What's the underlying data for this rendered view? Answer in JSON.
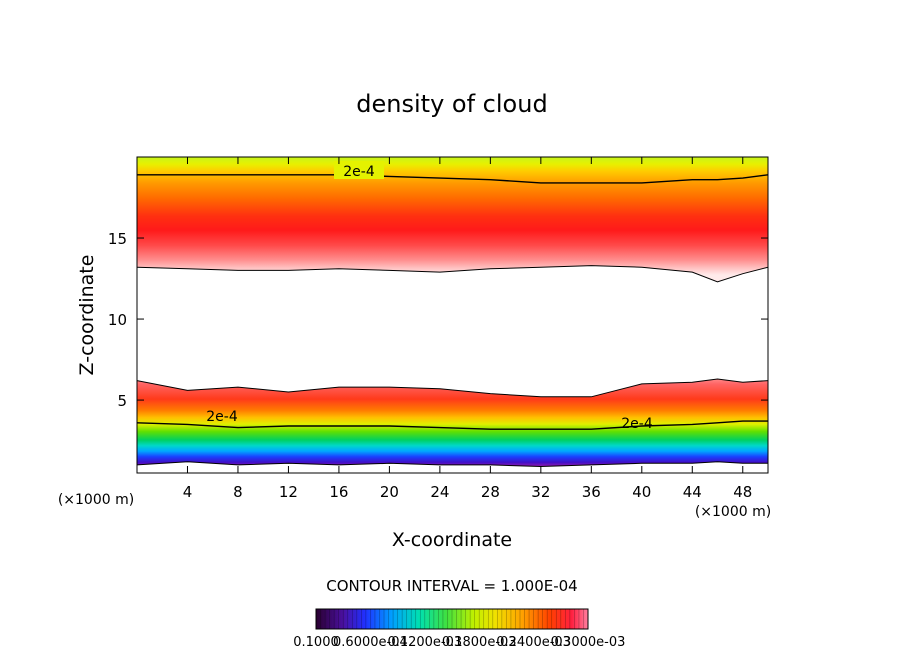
{
  "chart_data": {
    "type": "heatmap",
    "title": "density of cloud",
    "xlabel": "X-coordinate",
    "ylabel": "Z-coordinate",
    "x_unit_left": "(×1000 m)",
    "x_unit_right": "(×1000 m)",
    "xlim": [
      0,
      50
    ],
    "ylim": [
      0.5,
      20
    ],
    "x_ticks": [
      "4",
      "8",
      "12",
      "16",
      "20",
      "24",
      "28",
      "32",
      "36",
      "40",
      "44",
      "48"
    ],
    "y_ticks": [
      "5",
      "10",
      "15"
    ],
    "contour_labels": [
      "2e-4",
      "2e-4",
      "2e-4"
    ],
    "contour_interval_text": "CONTOUR INTERVAL = 1.000E-04",
    "colorbar_labels": [
      "0.1000",
      "0.6000e-04",
      "0.1200e-03",
      "0.1800e-03",
      "0.2400e-03",
      "0.3000e-03"
    ],
    "bands": {
      "x": [
        0,
        4,
        8,
        12,
        16,
        20,
        24,
        28,
        32,
        36,
        40,
        44,
        46,
        48,
        50
      ],
      "upper_cloud_base_z": [
        13.2,
        13.1,
        13.0,
        13.0,
        13.1,
        13.0,
        12.9,
        13.1,
        13.2,
        13.3,
        13.2,
        12.9,
        12.3,
        12.8,
        13.2
      ],
      "upper_2e4_contour_z": [
        18.9,
        18.9,
        18.9,
        18.9,
        18.9,
        18.8,
        18.7,
        18.6,
        18.4,
        18.4,
        18.4,
        18.6,
        18.6,
        18.7,
        18.9
      ],
      "lower_cloud_top_z": [
        6.2,
        5.6,
        5.8,
        5.5,
        5.8,
        5.8,
        5.7,
        5.4,
        5.2,
        5.2,
        6.0,
        6.1,
        6.3,
        6.1,
        6.2
      ],
      "lower_2e4_contour_z": [
        3.6,
        3.5,
        3.3,
        3.4,
        3.4,
        3.4,
        3.3,
        3.2,
        3.2,
        3.2,
        3.4,
        3.5,
        3.6,
        3.7,
        3.7
      ],
      "lower_cloud_base_z": [
        1.0,
        1.2,
        1.0,
        1.1,
        1.0,
        1.1,
        1.0,
        1.0,
        0.9,
        1.0,
        1.1,
        1.1,
        1.2,
        1.1,
        1.1
      ]
    }
  }
}
